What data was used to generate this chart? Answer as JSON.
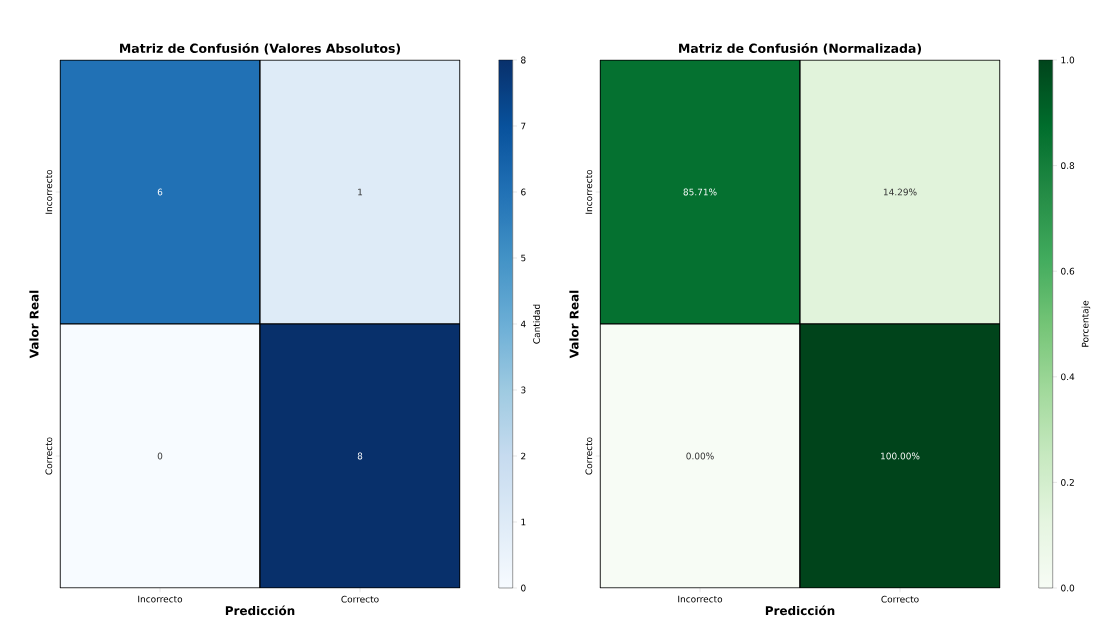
{
  "chart_data": [
    {
      "type": "heatmap",
      "title": "Matriz de Confusión (Valores Absolutos)",
      "xlabel": "Predicción",
      "ylabel": "Valor Real",
      "clabel": "Cantidad",
      "categories": [
        "Incorrecto",
        "Correcto"
      ],
      "y_categories": [
        "Incorrecto",
        "Correcto"
      ],
      "cells": [
        [
          6,
          1
        ],
        [
          0,
          8
        ]
      ],
      "clim": [
        0,
        8
      ],
      "cticks": [
        0,
        1,
        2,
        3,
        4,
        5,
        6,
        7,
        8
      ],
      "data_labels": true
    },
    {
      "type": "heatmap",
      "title": "Matriz de Confusión (Normalizada)",
      "xlabel": "Predicción",
      "ylabel": "Valor Real",
      "clabel": "Porcentaje",
      "categories": [
        "Incorrecto",
        "Correcto"
      ],
      "y_categories": [
        "Incorrecto",
        "Correcto"
      ],
      "cells": [
        [
          0.8571,
          0.1429
        ],
        [
          0.0,
          1.0
        ]
      ],
      "cell_labels": [
        [
          "85.71%",
          "14.29%"
        ],
        [
          "0.00%",
          "100.00%"
        ]
      ],
      "clim": [
        0,
        1
      ],
      "cticks": [
        {
          "value": 0,
          "label": "0.0"
        },
        {
          "value": 0.2,
          "label": "0.2"
        },
        {
          "value": 0.4,
          "label": "0.4"
        },
        {
          "value": 0.6,
          "label": "0.6"
        },
        {
          "value": 0.8,
          "label": "0.8"
        },
        {
          "value": 1,
          "label": "1.0"
        }
      ],
      "data_labels": true
    }
  ]
}
